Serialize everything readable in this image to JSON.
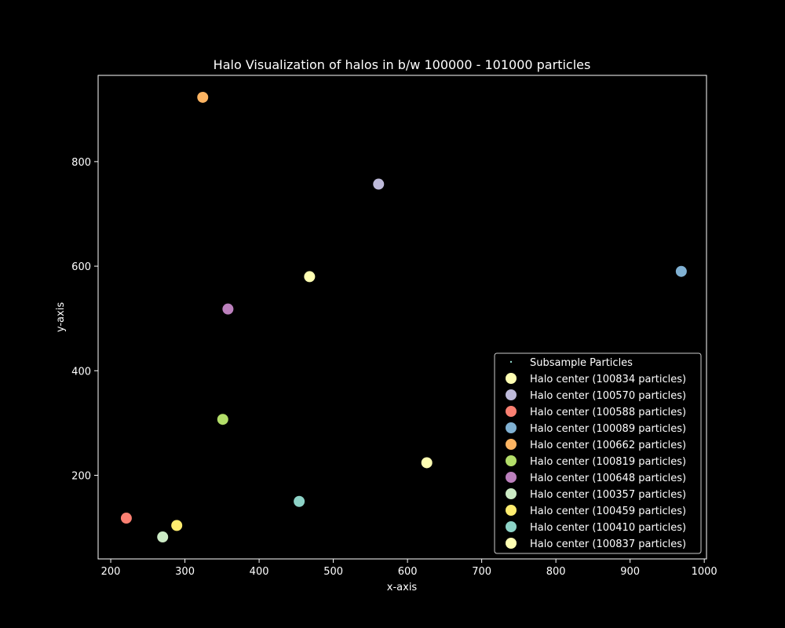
{
  "chart_data": {
    "type": "scatter",
    "title": "Halo Visualization of halos in b/w 100000 - 101000 particles",
    "xlabel": "x-axis",
    "ylabel": "y-axis",
    "xlim": [
      183,
      1003
    ],
    "ylim": [
      40,
      965
    ],
    "xticks": [
      200,
      300,
      400,
      500,
      600,
      700,
      800,
      900,
      1000
    ],
    "yticks": [
      200,
      400,
      600,
      800
    ],
    "grid": false,
    "legend_position": "lower-right",
    "background": "#000000",
    "foreground": "#ffffff",
    "legend_header": {
      "name": "Subsample Particles",
      "color": "#8dd3c7"
    },
    "series": [
      {
        "name": "Halo center (100834 particles)",
        "color": "#ffffb3",
        "x": 468,
        "y": 580
      },
      {
        "name": "Halo center (100570 particles)",
        "color": "#bebada",
        "x": 561,
        "y": 757
      },
      {
        "name": "Halo center (100588 particles)",
        "color": "#fb8072",
        "x": 221,
        "y": 118
      },
      {
        "name": "Halo center (100089 particles)",
        "color": "#80b1d3",
        "x": 969,
        "y": 590
      },
      {
        "name": "Halo center (100662 particles)",
        "color": "#fdb462",
        "x": 324,
        "y": 923
      },
      {
        "name": "Halo center (100819 particles)",
        "color": "#b3de69",
        "x": 351,
        "y": 307
      },
      {
        "name": "Halo center (100648 particles)",
        "color": "#bc80bd",
        "x": 358,
        "y": 518
      },
      {
        "name": "Halo center (100357 particles)",
        "color": "#ccebc5",
        "x": 270,
        "y": 82
      },
      {
        "name": "Halo center (100459 particles)",
        "color": "#ffed6f",
        "x": 289,
        "y": 104
      },
      {
        "name": "Halo center (100410 particles)",
        "color": "#8dd3c7",
        "x": 454,
        "y": 150
      },
      {
        "name": "Halo center (100837 particles)",
        "color": "#ffffb3",
        "x": 626,
        "y": 224
      }
    ]
  }
}
